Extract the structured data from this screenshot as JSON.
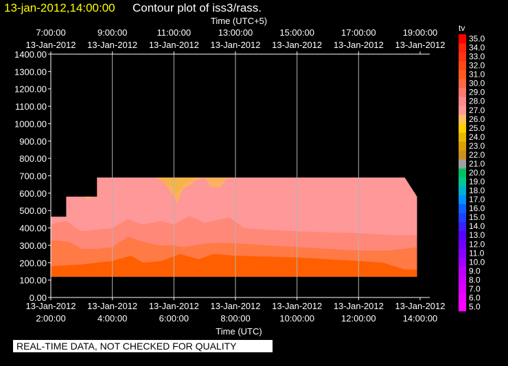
{
  "header": {
    "date_time": "13-jan-2012,14:00:00",
    "title": "Contour plot of iss3/rass."
  },
  "footer": {
    "quality_note": "REAL-TIME DATA, NOT CHECKED FOR QUALITY"
  },
  "colors": {
    "background": "#000000",
    "text": "#ffffff",
    "date_text": "#ffff00",
    "grid": "#b4b4b4"
  },
  "chart_data": {
    "type": "heatmap",
    "title": "Contour plot of iss3/rass.",
    "xlabel": "Time (UTC)",
    "xlabel_top": "Time (UTC+5)",
    "ylabel": "",
    "x_unit": "hours UTC, 13-Jan-2012",
    "xlim": [
      2.0,
      14.0
    ],
    "ylim": [
      0,
      1400
    ],
    "x_ticks_bottom": [
      {
        "x": 2,
        "date": "13-Jan-2012",
        "time": "2:00:00"
      },
      {
        "x": 4,
        "date": "13-Jan-2012",
        "time": "4:00:00"
      },
      {
        "x": 6,
        "date": "13-Jan-2012",
        "time": "6:00:00"
      },
      {
        "x": 8,
        "date": "13-Jan-2012",
        "time": "8:00:00"
      },
      {
        "x": 10,
        "date": "13-Jan-2012",
        "time": "10:00:00"
      },
      {
        "x": 12,
        "date": "13-Jan-2012",
        "time": "12:00:00"
      },
      {
        "x": 14,
        "date": "13-Jan-2012",
        "time": "14:00:00"
      }
    ],
    "x_ticks_top": [
      {
        "x": 2,
        "time": "7:00:00",
        "date": "13-Jan-2012"
      },
      {
        "x": 4,
        "time": "9:00:00",
        "date": "13-Jan-2012"
      },
      {
        "x": 6,
        "time": "11:00:00",
        "date": "13-Jan-2012"
      },
      {
        "x": 8,
        "time": "13:00:00",
        "date": "13-Jan-2012"
      },
      {
        "x": 10,
        "time": "15:00:00",
        "date": "13-Jan-2012"
      },
      {
        "x": 12,
        "time": "17:00:00",
        "date": "13-Jan-2012"
      },
      {
        "x": 14,
        "time": "19:00:00",
        "date": "13-Jan-2012"
      }
    ],
    "y_ticks": [
      "0.00",
      "100.00",
      "200.00",
      "300.00",
      "400.00",
      "500.00",
      "600.00",
      "700.00",
      "800.00",
      "900.00",
      "1000.00",
      "1100.00",
      "1200.00",
      "1300.00",
      "1400.00"
    ],
    "grid_x": true,
    "colorbar": {
      "label": "tv",
      "levels": [
        "5.0",
        "6.0",
        "7.0",
        "8.0",
        "9.0",
        "10.0",
        "11.0",
        "12.0",
        "13.0",
        "14.0",
        "15.0",
        "16.0",
        "17.0",
        "18.0",
        "19.0",
        "20.0",
        "21.0",
        "22.0",
        "23.0",
        "24.0",
        "25.0",
        "26.0",
        "27.0",
        "28.0",
        "29.0",
        "30.0",
        "31.0",
        "32.0",
        "33.0",
        "34.0",
        "35.0"
      ],
      "colors": [
        "#ff00ff",
        "#ee00ff",
        "#dd00ff",
        "#cc00ff",
        "#bb00ff",
        "#a000ff",
        "#8800ff",
        "#7000ff",
        "#5a00ff",
        "#3a20ff",
        "#2040ff",
        "#1060ff",
        "#0090ff",
        "#00b0d0",
        "#00c890",
        "#00c060",
        "#a0a0a0",
        "#c8901e",
        "#d8a000",
        "#e8b800",
        "#ffd000",
        "#ffc060",
        "#ff9a9a",
        "#ff8a8a",
        "#ff7870",
        "#ff6840",
        "#ff5a1e",
        "#ff4818",
        "#ff3412",
        "#ff220c",
        "#ff0000"
      ]
    },
    "bands": [
      {
        "value": 29.0,
        "color": "#ff5f00",
        "top": [
          [
            2.0,
            180
          ],
          [
            3.0,
            190
          ],
          [
            4.0,
            210
          ],
          [
            4.6,
            240
          ],
          [
            5.0,
            200
          ],
          [
            5.6,
            210
          ],
          [
            6.2,
            250
          ],
          [
            6.8,
            220
          ],
          [
            7.3,
            250
          ],
          [
            8.0,
            240
          ],
          [
            9.0,
            235
          ],
          [
            10.0,
            230
          ],
          [
            11.0,
            220
          ],
          [
            12.0,
            210
          ],
          [
            12.8,
            200
          ],
          [
            13.5,
            160
          ],
          [
            13.9,
            160
          ]
        ]
      },
      {
        "value": 28.0,
        "color": "#ff7a45",
        "top": [
          [
            2.0,
            330
          ],
          [
            2.6,
            320
          ],
          [
            3.0,
            280
          ],
          [
            3.5,
            280
          ],
          [
            4.0,
            290
          ],
          [
            4.5,
            350
          ],
          [
            5.0,
            320
          ],
          [
            5.5,
            300
          ],
          [
            6.0,
            300
          ],
          [
            6.3,
            290
          ],
          [
            7.0,
            310
          ],
          [
            7.6,
            315
          ],
          [
            8.2,
            310
          ],
          [
            9.0,
            300
          ],
          [
            10.0,
            290
          ],
          [
            11.0,
            280
          ],
          [
            12.0,
            270
          ],
          [
            13.0,
            270
          ],
          [
            13.9,
            290
          ]
        ]
      },
      {
        "value": 27.0,
        "color": "#ff8878",
        "top": [
          [
            2.0,
            420
          ],
          [
            2.5,
            440
          ],
          [
            3.0,
            380
          ],
          [
            3.5,
            390
          ],
          [
            4.0,
            400
          ],
          [
            4.5,
            450
          ],
          [
            5.0,
            420
          ],
          [
            5.6,
            440
          ],
          [
            6.0,
            420
          ],
          [
            6.5,
            470
          ],
          [
            7.0,
            430
          ],
          [
            7.8,
            460
          ],
          [
            8.3,
            400
          ],
          [
            9.0,
            390
          ],
          [
            10.0,
            380
          ],
          [
            11.0,
            375
          ],
          [
            12.0,
            370
          ],
          [
            13.0,
            360
          ],
          [
            13.9,
            360
          ]
        ]
      },
      {
        "value": 26.0,
        "color": "#ff9898",
        "top": [
          [
            2.0,
            465
          ],
          [
            2.5,
            465
          ],
          [
            2.5,
            580
          ],
          [
            3.0,
            580
          ],
          [
            3.0,
            580
          ],
          [
            3.5,
            580
          ],
          [
            3.5,
            690
          ],
          [
            4.0,
            690
          ],
          [
            5.0,
            690
          ],
          [
            6.0,
            690
          ],
          [
            7.0,
            690
          ],
          [
            8.0,
            690
          ],
          [
            9.0,
            690
          ],
          [
            10.0,
            690
          ],
          [
            11.0,
            690
          ],
          [
            12.0,
            690
          ],
          [
            13.0,
            690
          ],
          [
            13.5,
            690
          ],
          [
            13.9,
            580
          ]
        ]
      },
      {
        "value": 25.0,
        "color": "#ffb060",
        "patch": [
          [
            5.4,
            690
          ],
          [
            5.7,
            660
          ],
          [
            6.0,
            580
          ],
          [
            6.1,
            540
          ],
          [
            6.3,
            620
          ],
          [
            6.8,
            680
          ],
          [
            7.0,
            690
          ],
          [
            7.2,
            640
          ],
          [
            7.5,
            630
          ],
          [
            7.7,
            680
          ],
          [
            8.0,
            690
          ]
        ]
      },
      {
        "value": 24.5,
        "color": "#f5b44a",
        "patch": [
          [
            5.4,
            690
          ],
          [
            5.6,
            670
          ],
          [
            5.9,
            640
          ],
          [
            6.1,
            600
          ],
          [
            6.3,
            650
          ],
          [
            6.7,
            690
          ]
        ]
      },
      {
        "value": 25.0,
        "color": "#ffb060",
        "patch": [
          [
            3.1,
            580
          ],
          [
            3.2,
            560
          ],
          [
            3.3,
            580
          ]
        ]
      }
    ],
    "data_bottom": 120,
    "data_x_range": [
      2.0,
      13.9
    ]
  }
}
